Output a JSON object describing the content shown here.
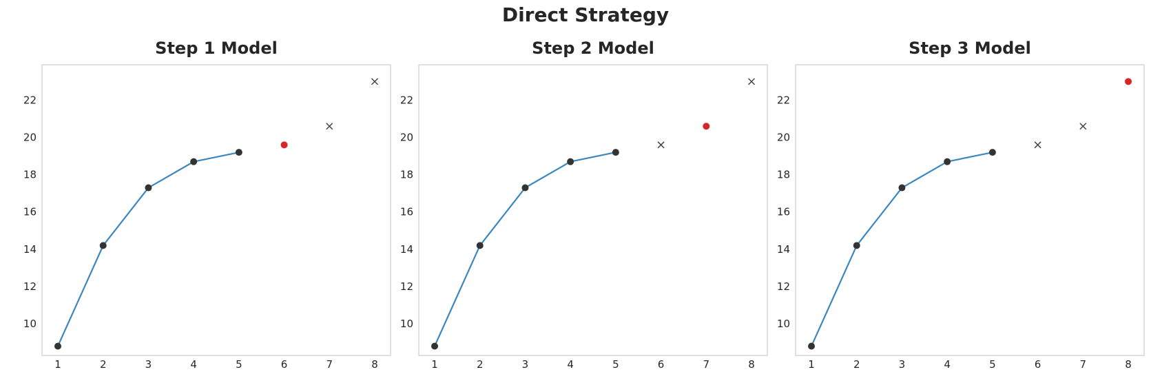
{
  "figure": {
    "title": "Direct Strategy"
  },
  "colors": {
    "line": "#3a86bf",
    "history_marker": "#333333",
    "prediction": "#d62728",
    "future_marker": "#444444",
    "frame": "#cccccc"
  },
  "chart_data": [
    {
      "type": "line",
      "title": "Step 1 Model",
      "xlabel": "",
      "ylabel": "",
      "x_ticks": [
        1,
        2,
        3,
        4,
        5,
        6,
        7,
        8
      ],
      "y_ticks": [
        10,
        12,
        14,
        16,
        18,
        20,
        22
      ],
      "xlim": [
        0.65,
        8.35
      ],
      "ylim": [
        8.3,
        23.9
      ],
      "grid": false,
      "history": {
        "x": [
          1,
          2,
          3,
          4,
          5
        ],
        "y": [
          8.8,
          14.2,
          17.3,
          18.7,
          19.2
        ]
      },
      "prediction": {
        "x": 6,
        "y": 19.6
      },
      "future": {
        "x": [
          7,
          8
        ],
        "y": [
          20.6,
          23.0
        ]
      }
    },
    {
      "type": "line",
      "title": "Step 2 Model",
      "xlabel": "",
      "ylabel": "",
      "x_ticks": [
        1,
        2,
        3,
        4,
        5,
        6,
        7,
        8
      ],
      "y_ticks": [
        10,
        12,
        14,
        16,
        18,
        20,
        22
      ],
      "xlim": [
        0.65,
        8.35
      ],
      "ylim": [
        8.3,
        23.9
      ],
      "grid": false,
      "history": {
        "x": [
          1,
          2,
          3,
          4,
          5
        ],
        "y": [
          8.8,
          14.2,
          17.3,
          18.7,
          19.2
        ]
      },
      "prediction": {
        "x": 7,
        "y": 20.6
      },
      "future": {
        "x": [
          6,
          8
        ],
        "y": [
          19.6,
          23.0
        ]
      }
    },
    {
      "type": "line",
      "title": "Step 3 Model",
      "xlabel": "",
      "ylabel": "",
      "x_ticks": [
        1,
        2,
        3,
        4,
        5,
        6,
        7,
        8
      ],
      "y_ticks": [
        10,
        12,
        14,
        16,
        18,
        20,
        22
      ],
      "xlim": [
        0.65,
        8.35
      ],
      "ylim": [
        8.3,
        23.9
      ],
      "grid": false,
      "history": {
        "x": [
          1,
          2,
          3,
          4,
          5
        ],
        "y": [
          8.8,
          14.2,
          17.3,
          18.7,
          19.2
        ]
      },
      "prediction": {
        "x": 8,
        "y": 23.0
      },
      "future": {
        "x": [
          6,
          7
        ],
        "y": [
          19.6,
          20.6
        ]
      }
    }
  ]
}
